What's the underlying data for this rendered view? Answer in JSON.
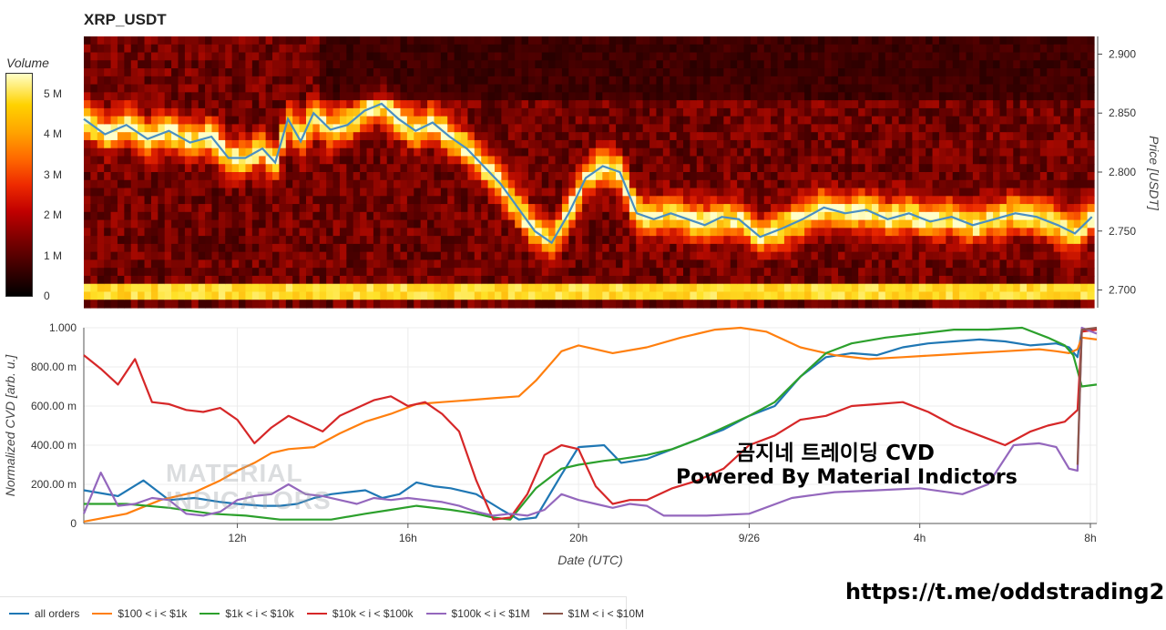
{
  "chart_data": [
    {
      "type": "heatmap",
      "title": "XRP_USDT",
      "ylabel": "Price [USDT]",
      "colorbar": {
        "title": "Volume",
        "ticks": [
          "0",
          "1 M",
          "2 M",
          "3 M",
          "4 M",
          "5 M"
        ],
        "range": [
          0,
          5500000
        ]
      },
      "yticks": [
        "2.700",
        "2.750",
        "2.800",
        "2.850",
        "2.900"
      ],
      "ylim": [
        2.685,
        2.915
      ],
      "x_range_hours": [
        -3.6,
        20.15
      ],
      "price_series": {
        "name": "",
        "color": "#4a8fc2",
        "x": [
          -3.6,
          -3.1,
          -2.6,
          -2.1,
          -1.6,
          -1.1,
          -0.6,
          -0.2,
          0.2,
          0.6,
          0.9,
          1.2,
          1.5,
          1.8,
          2.2,
          2.6,
          3.0,
          3.4,
          3.8,
          4.2,
          4.6,
          5.0,
          5.4,
          5.8,
          6.2,
          6.6,
          7.0,
          7.4,
          7.8,
          8.2,
          8.6,
          9.0,
          9.4,
          9.8,
          10.2,
          10.6,
          11.0,
          11.4,
          11.8,
          12.3,
          12.8,
          13.3,
          13.8,
          14.3,
          14.8,
          15.3,
          15.8,
          16.3,
          16.8,
          17.3,
          17.8,
          18.3,
          18.8,
          19.3,
          19.7,
          20.1
        ],
        "y": [
          2.845,
          2.832,
          2.84,
          2.828,
          2.835,
          2.825,
          2.83,
          2.812,
          2.812,
          2.82,
          2.808,
          2.845,
          2.826,
          2.85,
          2.836,
          2.84,
          2.852,
          2.858,
          2.845,
          2.835,
          2.842,
          2.83,
          2.82,
          2.805,
          2.79,
          2.77,
          2.75,
          2.74,
          2.765,
          2.795,
          2.805,
          2.8,
          2.765,
          2.76,
          2.765,
          2.76,
          2.755,
          2.762,
          2.76,
          2.745,
          2.752,
          2.76,
          2.77,
          2.765,
          2.768,
          2.76,
          2.765,
          2.758,
          2.762,
          2.755,
          2.76,
          2.765,
          2.762,
          2.755,
          2.748,
          2.762
        ]
      }
    },
    {
      "type": "line",
      "xlabel": "Date (UTC)",
      "ylabel": "Normalized CVD [arb. u.]",
      "xticks": [
        "12h",
        "16h",
        "20h",
        "9/26",
        "4h",
        "8h"
      ],
      "xtick_hours": [
        0,
        4,
        8,
        12,
        16,
        20
      ],
      "yticks": [
        "0",
        "200.00 m",
        "400.00 m",
        "600.00 m",
        "800.00 m",
        "1.000"
      ],
      "ylim": [
        0,
        1
      ],
      "x_range_hours": [
        -3.6,
        20.15
      ],
      "grid": true,
      "series": [
        {
          "name": "all orders",
          "color": "#1f77b4",
          "x": [
            -3.6,
            -2.8,
            -2.2,
            -1.6,
            -1.0,
            -0.4,
            0.0,
            0.6,
            1.0,
            1.4,
            1.8,
            2.2,
            2.6,
            3.0,
            3.4,
            3.8,
            4.2,
            4.6,
            5.0,
            5.6,
            6.2,
            6.6,
            7.0,
            7.6,
            8.0,
            8.6,
            9.0,
            9.6,
            10.2,
            10.8,
            11.4,
            12.0,
            12.6,
            13.2,
            13.8,
            14.4,
            15.0,
            15.6,
            16.2,
            16.8,
            17.4,
            18.0,
            18.6,
            19.2,
            19.5,
            19.7,
            19.8,
            20.15
          ],
          "y": [
            0.17,
            0.14,
            0.22,
            0.12,
            0.13,
            0.11,
            0.1,
            0.09,
            0.09,
            0.1,
            0.13,
            0.15,
            0.16,
            0.17,
            0.13,
            0.15,
            0.21,
            0.19,
            0.18,
            0.15,
            0.07,
            0.02,
            0.03,
            0.25,
            0.39,
            0.4,
            0.31,
            0.33,
            0.38,
            0.43,
            0.48,
            0.55,
            0.6,
            0.75,
            0.85,
            0.87,
            0.86,
            0.9,
            0.92,
            0.93,
            0.94,
            0.93,
            0.91,
            0.92,
            0.9,
            0.85,
            0.99,
            0.99
          ]
        },
        {
          "name": "$100 < i < $1k",
          "color": "#ff7f0e",
          "x": [
            -3.6,
            -2.6,
            -1.8,
            -1.0,
            -0.4,
            0.0,
            0.4,
            0.8,
            1.2,
            1.8,
            2.4,
            3.0,
            3.6,
            4.2,
            4.8,
            5.4,
            6.0,
            6.6,
            7.0,
            7.6,
            8.0,
            8.8,
            9.6,
            10.4,
            11.2,
            11.8,
            12.4,
            13.2,
            14.0,
            14.8,
            15.6,
            16.4,
            17.2,
            18.0,
            18.8,
            19.2,
            19.5,
            19.7,
            19.8,
            20.15
          ],
          "y": [
            0.01,
            0.05,
            0.12,
            0.16,
            0.22,
            0.27,
            0.31,
            0.36,
            0.38,
            0.39,
            0.46,
            0.52,
            0.56,
            0.61,
            0.62,
            0.63,
            0.64,
            0.65,
            0.73,
            0.88,
            0.91,
            0.87,
            0.9,
            0.95,
            0.99,
            1.0,
            0.98,
            0.9,
            0.86,
            0.84,
            0.85,
            0.86,
            0.87,
            0.88,
            0.89,
            0.88,
            0.87,
            0.89,
            0.95,
            0.94
          ]
        },
        {
          "name": "$1k < i < $10k",
          "color": "#2ca02c",
          "x": [
            -3.6,
            -2.6,
            -1.6,
            -0.6,
            0.2,
            1.0,
            1.6,
            2.2,
            3.0,
            3.6,
            4.2,
            5.0,
            5.6,
            6.0,
            6.4,
            7.0,
            7.6,
            8.0,
            8.6,
            9.0,
            9.6,
            10.2,
            10.8,
            11.4,
            12.0,
            12.6,
            13.2,
            13.8,
            14.4,
            15.2,
            16.0,
            16.8,
            17.6,
            18.4,
            19.0,
            19.4,
            19.6,
            19.8,
            20.15
          ],
          "y": [
            0.1,
            0.1,
            0.08,
            0.05,
            0.04,
            0.02,
            0.02,
            0.02,
            0.05,
            0.07,
            0.09,
            0.07,
            0.05,
            0.03,
            0.02,
            0.18,
            0.28,
            0.3,
            0.32,
            0.33,
            0.35,
            0.38,
            0.43,
            0.49,
            0.55,
            0.62,
            0.75,
            0.87,
            0.92,
            0.95,
            0.97,
            0.99,
            0.99,
            1.0,
            0.95,
            0.91,
            0.86,
            0.7,
            0.71
          ]
        },
        {
          "name": "$10k < i < $100k",
          "color": "#d62728",
          "x": [
            -3.6,
            -3.2,
            -2.8,
            -2.4,
            -2.0,
            -1.6,
            -1.2,
            -0.8,
            -0.4,
            0.0,
            0.4,
            0.8,
            1.2,
            1.6,
            2.0,
            2.4,
            2.8,
            3.2,
            3.6,
            4.0,
            4.4,
            4.8,
            5.2,
            5.6,
            6.0,
            6.4,
            6.8,
            7.2,
            7.6,
            8.0,
            8.4,
            8.8,
            9.2,
            9.6,
            10.2,
            10.8,
            11.4,
            12.0,
            12.6,
            13.2,
            13.8,
            14.4,
            15.0,
            15.6,
            16.2,
            16.8,
            17.4,
            18.0,
            18.6,
            19.0,
            19.4,
            19.7,
            19.8,
            20.15
          ],
          "y": [
            0.86,
            0.79,
            0.71,
            0.84,
            0.62,
            0.61,
            0.58,
            0.57,
            0.59,
            0.53,
            0.41,
            0.49,
            0.55,
            0.51,
            0.47,
            0.55,
            0.59,
            0.63,
            0.65,
            0.6,
            0.62,
            0.56,
            0.47,
            0.22,
            0.02,
            0.03,
            0.15,
            0.35,
            0.4,
            0.38,
            0.19,
            0.1,
            0.12,
            0.12,
            0.18,
            0.22,
            0.28,
            0.4,
            0.45,
            0.53,
            0.55,
            0.6,
            0.61,
            0.62,
            0.57,
            0.5,
            0.45,
            0.4,
            0.47,
            0.5,
            0.52,
            0.58,
            0.98,
            0.99
          ]
        },
        {
          "name": "$100k < i < $1M",
          "color": "#9467bd",
          "x": [
            -3.6,
            -3.2,
            -2.8,
            -2.4,
            -2.0,
            -1.6,
            -1.2,
            -0.8,
            -0.4,
            0.0,
            0.4,
            0.8,
            1.2,
            1.6,
            2.0,
            2.4,
            2.8,
            3.2,
            3.6,
            4.0,
            4.4,
            4.8,
            5.2,
            5.6,
            6.0,
            6.4,
            6.8,
            7.2,
            7.6,
            8.0,
            8.4,
            8.8,
            9.2,
            9.6,
            10.0,
            11.0,
            12.0,
            13.0,
            14.0,
            15.0,
            16.0,
            17.0,
            17.6,
            18.2,
            18.8,
            19.2,
            19.5,
            19.7,
            19.8,
            20.15
          ],
          "y": [
            0.05,
            0.26,
            0.09,
            0.1,
            0.13,
            0.12,
            0.05,
            0.04,
            0.06,
            0.12,
            0.14,
            0.15,
            0.2,
            0.15,
            0.14,
            0.12,
            0.1,
            0.13,
            0.12,
            0.13,
            0.12,
            0.11,
            0.09,
            0.06,
            0.04,
            0.05,
            0.04,
            0.07,
            0.15,
            0.12,
            0.1,
            0.08,
            0.1,
            0.09,
            0.04,
            0.04,
            0.05,
            0.13,
            0.16,
            0.17,
            0.18,
            0.15,
            0.2,
            0.4,
            0.41,
            0.39,
            0.28,
            0.27,
            1.0,
            0.97
          ]
        },
        {
          "name": "$1M < i < $10M",
          "color": "#8c564b",
          "x": [
            19.7,
            19.8,
            20.15
          ],
          "y": [
            0.3,
            0.99,
            1.0
          ]
        }
      ]
    }
  ],
  "watermark": {
    "line1": "MATERIAL",
    "line2": "INDICATORS"
  },
  "overlay": {
    "title": "곰지네 트레이딩 CVD",
    "subtitle": "Powered By Material Indictors",
    "link": "https://t.me/oddstrading2"
  }
}
